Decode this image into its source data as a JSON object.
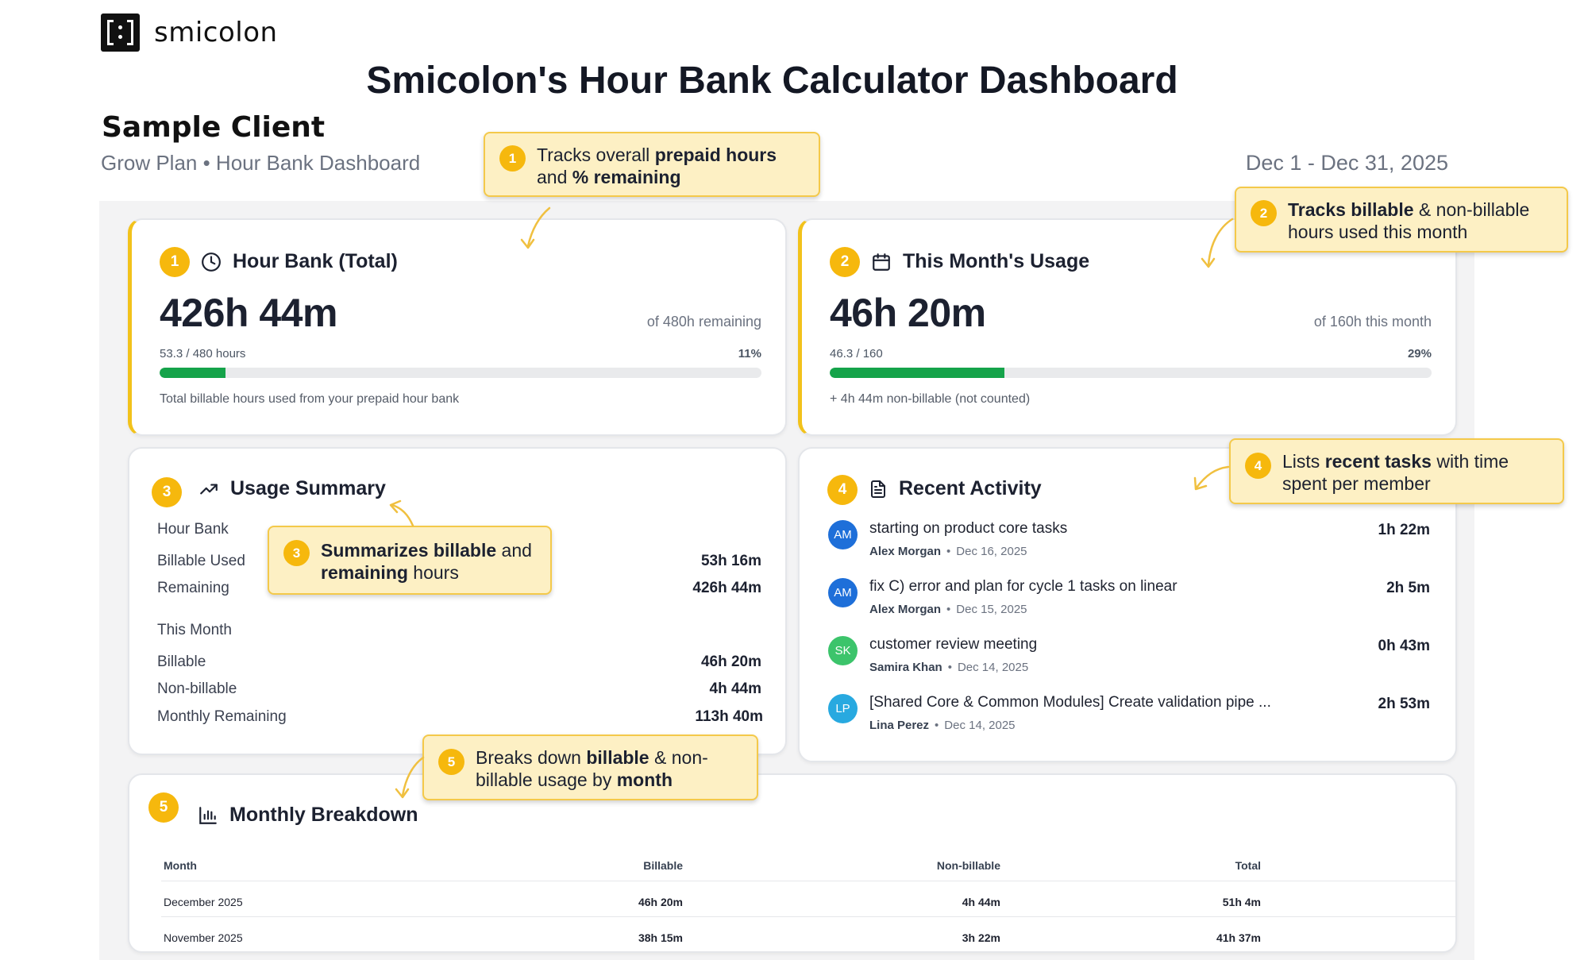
{
  "brand": {
    "name": "smicolon",
    "accent": "#f6b80d",
    "progress_color": "#15a34a"
  },
  "page_title": "Smicolon's Hour Bank Calculator Dashboard",
  "client": {
    "name": "Sample Client",
    "plan_line": "Grow Plan • Hour Bank Dashboard",
    "date_range": "Dec 1 - Dec 31, 2025"
  },
  "hour_bank": {
    "badge": "1",
    "icon": "clock-icon",
    "title": "Hour Bank (Total)",
    "value": "426h 44m",
    "of_text": "of 480h remaining",
    "progress_label": "53.3 / 480 hours",
    "progress_pct_label": "11%",
    "progress_fraction": 0.11,
    "note": "Total billable hours used from your prepaid hour bank"
  },
  "month_usage": {
    "badge": "2",
    "icon": "calendar-icon",
    "title": "This Month's Usage",
    "value": "46h 20m",
    "of_text": "of 160h this month",
    "progress_label": "46.3 / 160",
    "progress_pct_label": "29%",
    "progress_fraction": 0.29,
    "note": "+ 4h 44m non-billable (not counted)"
  },
  "usage_summary": {
    "badge": "3",
    "icon": "trending-up-icon",
    "title": "Usage Summary",
    "hour_bank_heading": "Hour Bank",
    "hour_bank_rows": [
      {
        "label": "Billable Used",
        "value": "53h 16m"
      },
      {
        "label": "Remaining",
        "value": "426h 44m"
      }
    ],
    "month_heading": "This Month",
    "month_rows": [
      {
        "label": "Billable",
        "value": "46h 20m"
      },
      {
        "label": "Non-billable",
        "value": "4h 44m"
      },
      {
        "label": "Monthly Remaining",
        "value": "113h 40m"
      }
    ]
  },
  "recent_activity": {
    "badge": "4",
    "icon": "document-icon",
    "title": "Recent Activity",
    "items": [
      {
        "initials": "AM",
        "avatar_color": "#1e6fd9",
        "title": "starting on product core tasks",
        "member": "Alex Morgan",
        "date": "Dec 16, 2025",
        "duration": "1h 22m"
      },
      {
        "initials": "AM",
        "avatar_color": "#1e6fd9",
        "title": "fix C) error and plan for cycle 1 tasks on linear",
        "member": "Alex Morgan",
        "date": "Dec 15, 2025",
        "duration": "2h 5m"
      },
      {
        "initials": "SK",
        "avatar_color": "#3cc46b",
        "title": "customer review meeting",
        "member": "Samira Khan",
        "date": "Dec 14, 2025",
        "duration": "0h 43m"
      },
      {
        "initials": "LP",
        "avatar_color": "#28a9e0",
        "title": "[Shared Core & Common Modules] Create validation pipe ...",
        "member": "Lina Perez",
        "date": "Dec 14, 2025",
        "duration": "2h 53m"
      }
    ]
  },
  "monthly_breakdown": {
    "badge": "5",
    "icon": "bar-chart-icon",
    "title": "Monthly Breakdown",
    "columns": [
      "Month",
      "Billable",
      "Non-billable",
      "Total"
    ],
    "rows": [
      {
        "month": "December 2025",
        "billable": "46h 20m",
        "non_billable": "4h 44m",
        "total": "51h 4m"
      },
      {
        "month": "November 2025",
        "billable": "38h 15m",
        "non_billable": "3h 22m",
        "total": "41h 37m"
      }
    ]
  },
  "callouts": {
    "c1": {
      "badge": "1",
      "t1": "Tracks overall ",
      "b1": "prepaid hours",
      "t2": "and ",
      "b2": "% remaining"
    },
    "c2": {
      "badge": "2",
      "b1": "Tracks billable",
      "t1": " & non-billable",
      "t2": "hours used this month"
    },
    "c3": {
      "badge": "3",
      "b1": "Summarizes billable",
      "t1": " and",
      "b2": "remaining",
      "t2": " hours"
    },
    "c4": {
      "badge": "4",
      "t1": "Lists ",
      "b1": "recent tasks",
      "t2": " with time",
      "t3": "spent per member"
    },
    "c5": {
      "badge": "5",
      "t1": "Breaks down ",
      "b1": "billable",
      "t2": " & non-",
      "t3": "billable usage by ",
      "b2": "month"
    }
  }
}
